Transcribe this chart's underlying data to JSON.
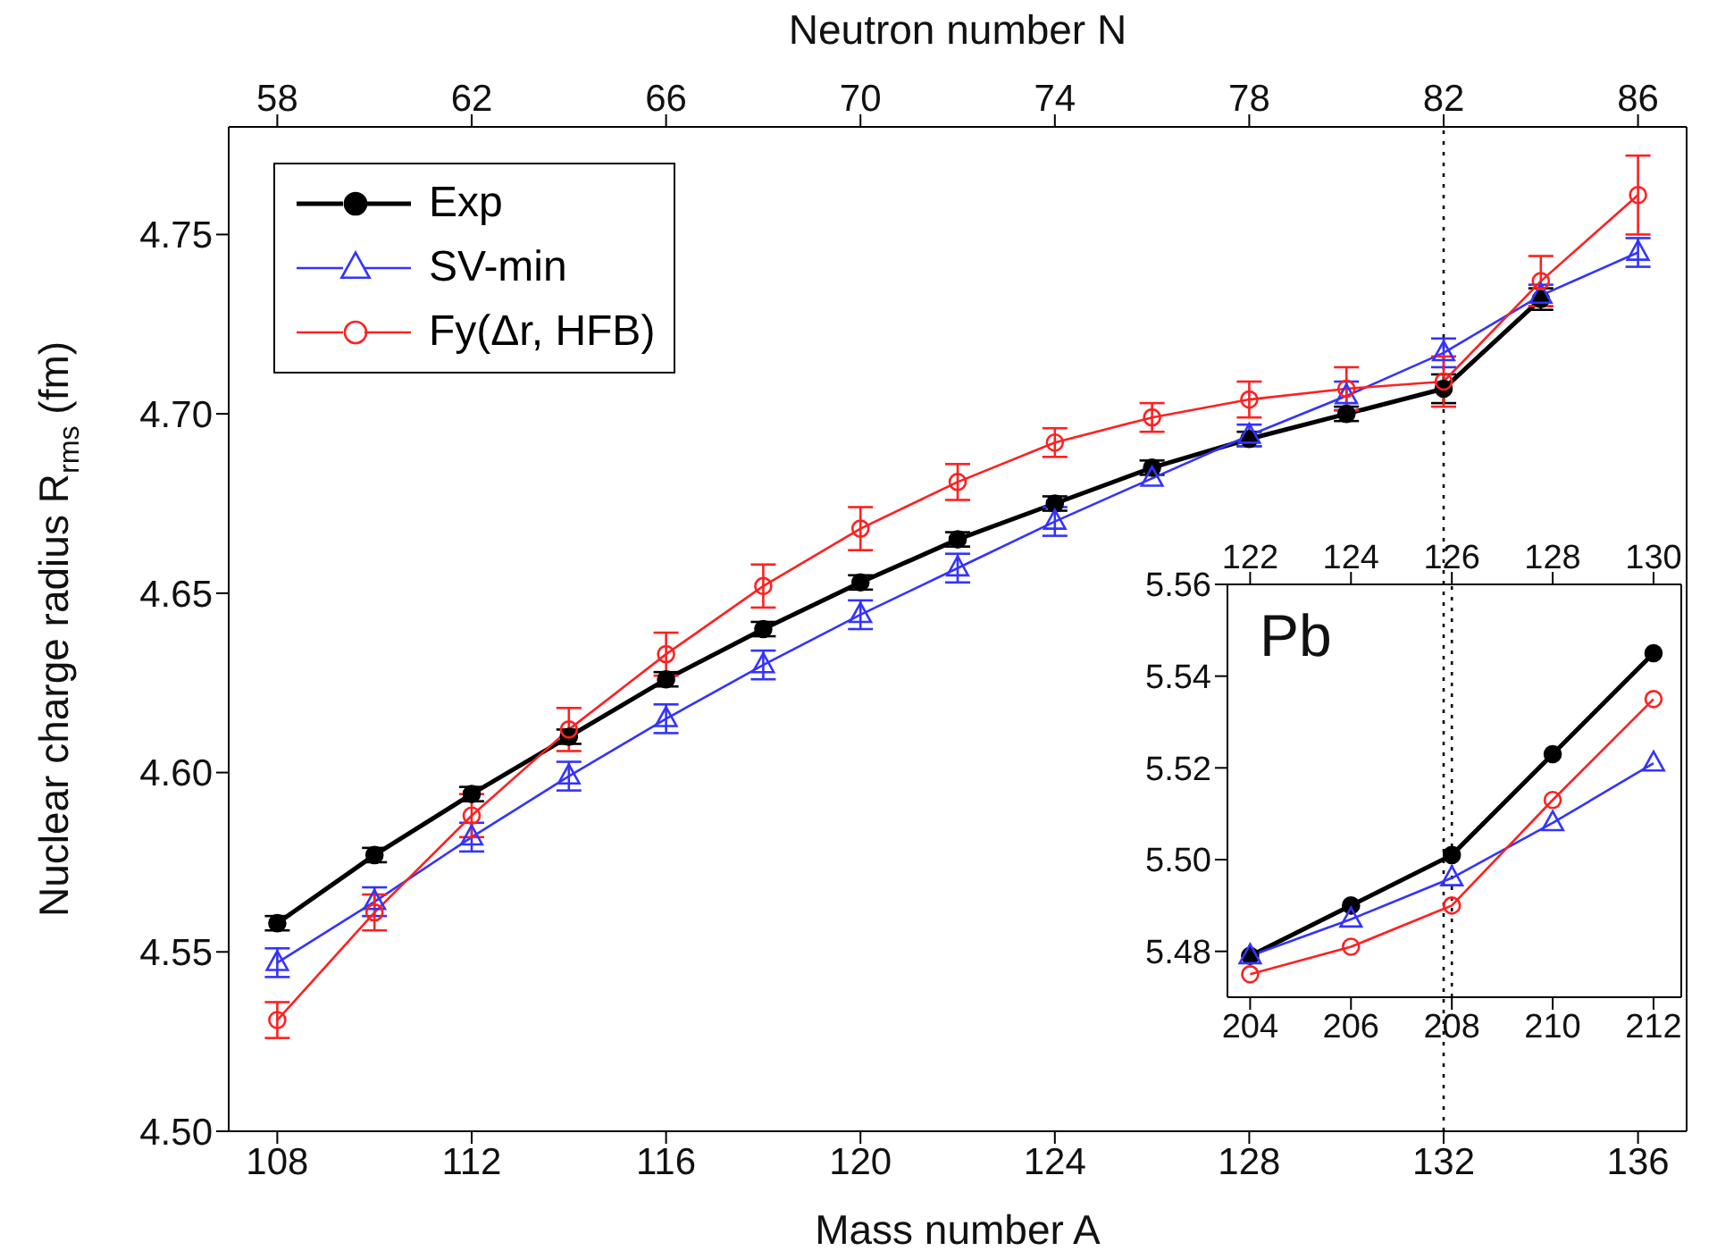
{
  "chart_data": [
    {
      "type": "line",
      "xlabel": "Mass number A",
      "ylabel": "Nuclear charge radius R$_{rms}$ (fm)",
      "x2label": "Neutron number N",
      "xlim": [
        107,
        137
      ],
      "xticks": [
        108,
        112,
        116,
        120,
        124,
        128,
        132,
        136
      ],
      "x2lim": [
        57,
        87
      ],
      "x2ticks": [
        58,
        62,
        66,
        70,
        74,
        78,
        82,
        86
      ],
      "ylim": [
        4.5,
        4.78
      ],
      "yticks": [
        {
          "value": 4.5,
          "label": "4.50"
        },
        4.55,
        {
          "value": 4.6,
          "label": "4.60"
        },
        4.65,
        {
          "value": 4.7,
          "label": "4.70"
        },
        4.75
      ],
      "grid": false,
      "legend": "top left",
      "line_style": "solid",
      "ref_lines": [
        {
          "axis": "x",
          "value": 132,
          "line_style": "dotted",
          "color": "#000000"
        }
      ],
      "series": [
        {
          "name": "Exp",
          "color": "#000000",
          "marker": "circle",
          "x": [
            108,
            110,
            112,
            114,
            116,
            118,
            120,
            122,
            124,
            126,
            128,
            130,
            132,
            134
          ],
          "values": [
            4.558,
            4.577,
            4.594,
            4.61,
            4.626,
            4.64,
            4.653,
            4.665,
            4.675,
            4.685,
            4.693,
            4.7,
            4.707,
            4.732
          ],
          "errors": [
            0.002,
            0.002,
            0.002,
            0.002,
            0.002,
            0.002,
            0.002,
            0.002,
            0.002,
            0.002,
            0.002,
            0.002,
            0.004,
            0.003
          ]
        },
        {
          "name": "SV-min",
          "color": "#3333ff",
          "marker": "triangle",
          "x": [
            108,
            110,
            112,
            114,
            116,
            118,
            120,
            122,
            124,
            126,
            128,
            130,
            132,
            134,
            136
          ],
          "values": [
            4.547,
            4.564,
            4.582,
            4.599,
            4.615,
            4.63,
            4.644,
            4.657,
            4.67,
            4.682,
            4.694,
            4.705,
            4.717,
            4.733,
            4.745
          ],
          "errors": [
            0.004,
            0.004,
            0.004,
            0.004,
            0.004,
            0.004,
            0.004,
            0.004,
            0.004,
            null,
            0.003,
            0.004,
            0.004,
            0.003,
            0.004
          ]
        },
        {
          "name": "Fy(Δr, HFB)",
          "color": "#ff2020",
          "marker": "circle",
          "x": [
            108,
            110,
            112,
            114,
            116,
            118,
            120,
            122,
            124,
            126,
            128,
            130,
            132,
            134,
            136
          ],
          "values": [
            4.531,
            4.561,
            4.588,
            4.612,
            4.633,
            4.652,
            4.668,
            4.681,
            4.692,
            4.699,
            4.704,
            4.707,
            4.709,
            4.737,
            4.761
          ],
          "errors": [
            0.005,
            0.005,
            0.006,
            0.006,
            0.006,
            0.006,
            0.006,
            0.005,
            0.004,
            0.004,
            0.005,
            0.006,
            0.007,
            0.007,
            0.011
          ]
        }
      ]
    },
    {
      "type": "line",
      "annotations": [
        "Pb"
      ],
      "xlim": [
        203.55,
        212.55
      ],
      "xticks": [
        204,
        206,
        208,
        210,
        212
      ],
      "x2lim": [
        121.55,
        130.55
      ],
      "x2ticks": [
        122,
        124,
        126,
        128,
        130
      ],
      "ylim": [
        5.47,
        5.56
      ],
      "yticks": [
        5.48,
        {
          "value": 5.5,
          "label": "5.50"
        },
        5.52,
        5.54,
        5.56
      ],
      "grid": false,
      "legend": false,
      "line_style": "solid",
      "ref_lines": [
        {
          "axis": "x",
          "value": 208,
          "line_style": "dotted",
          "color": "#000000"
        }
      ],
      "series": [
        {
          "color": "#000000",
          "marker": "circle",
          "x": [
            204,
            206,
            208,
            210,
            212
          ],
          "values": [
            5.479,
            5.49,
            5.501,
            5.523,
            5.545
          ]
        },
        {
          "color": "#3333ff",
          "marker": "triangle",
          "x": [
            204,
            206,
            208,
            210,
            212
          ],
          "values": [
            5.479,
            5.487,
            5.496,
            5.508,
            5.521
          ]
        },
        {
          "color": "#ff2020",
          "marker": "circle",
          "x": [
            204,
            206,
            208,
            210,
            212
          ],
          "values": [
            5.475,
            5.481,
            5.49,
            5.513,
            5.535
          ]
        }
      ]
    }
  ]
}
